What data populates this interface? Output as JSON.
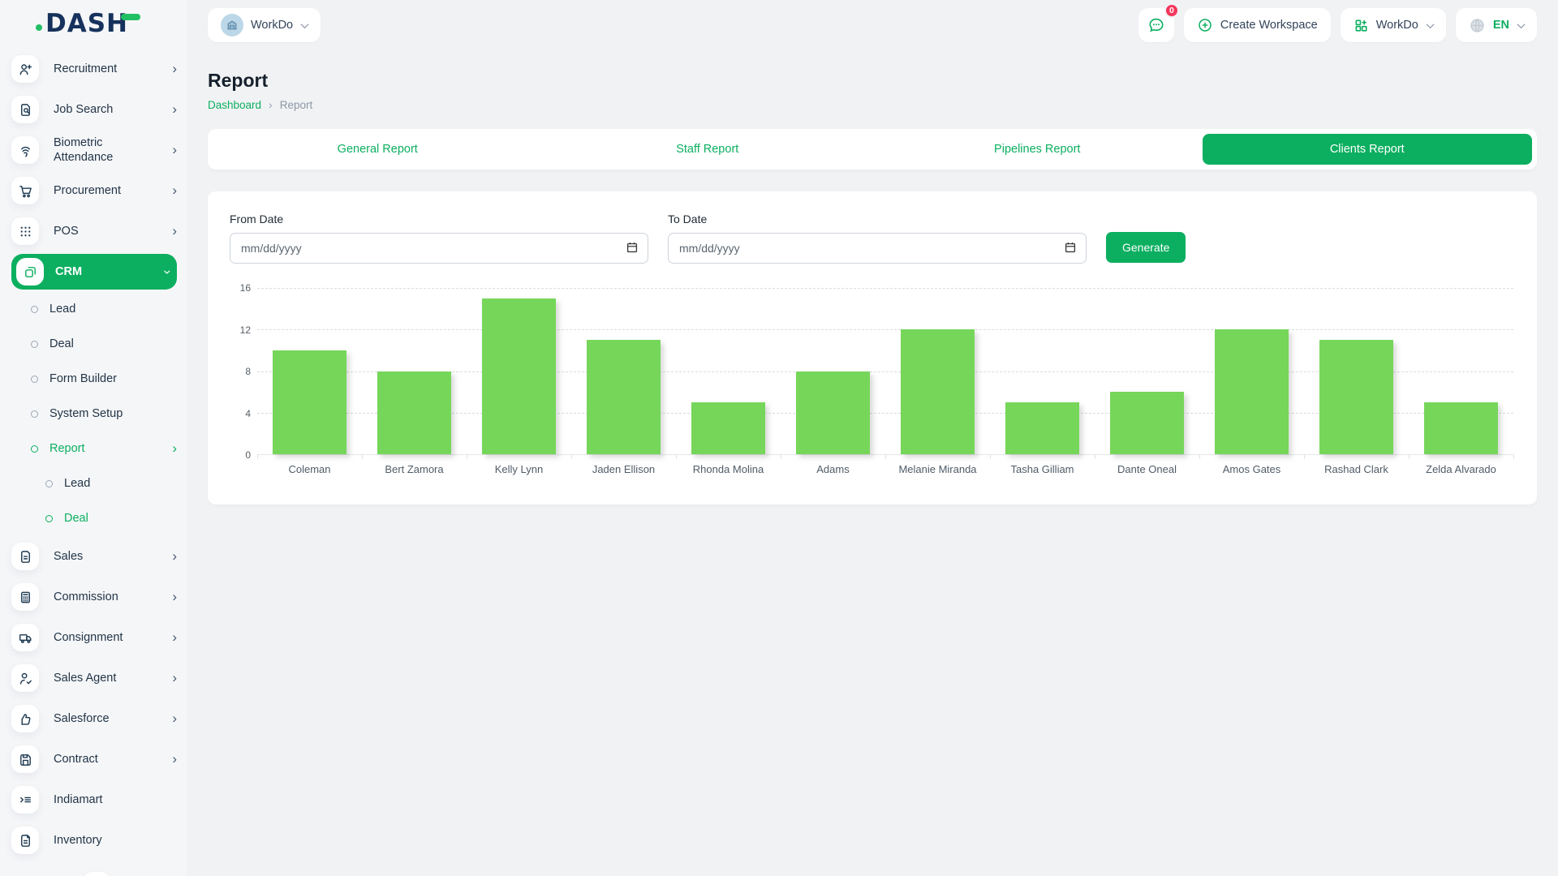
{
  "brand": {
    "logo_text": "DASH",
    "accent_color": "#0caf60"
  },
  "header": {
    "workspace_label": "WorkDo",
    "messages_badge": "0",
    "create_workspace_label": "Create Workspace",
    "apps_label": "WorkDo",
    "language": "EN"
  },
  "sidebar": {
    "items": [
      {
        "label": "Recruitment",
        "icon": "recruitment",
        "level": 0,
        "chevron": "right"
      },
      {
        "label": "Job Search",
        "icon": "job-search",
        "level": 0,
        "chevron": "right"
      },
      {
        "label": "Biometric Attendance",
        "icon": "biometric",
        "level": 0,
        "chevron": "right"
      },
      {
        "label": "Procurement",
        "icon": "procurement",
        "level": 0,
        "chevron": "right"
      },
      {
        "label": "POS",
        "icon": "pos",
        "level": 0,
        "chevron": "right"
      },
      {
        "label": "CRM",
        "icon": "crm",
        "level": 0,
        "chevron": "down",
        "active": true
      },
      {
        "label": "Lead",
        "level": 1
      },
      {
        "label": "Deal",
        "level": 1
      },
      {
        "label": "Form Builder",
        "level": 1
      },
      {
        "label": "System Setup",
        "level": 1
      },
      {
        "label": "Report",
        "level": 1,
        "chevron": "right",
        "active": true
      },
      {
        "label": "Lead",
        "level": 2
      },
      {
        "label": "Deal",
        "level": 2,
        "active": true
      },
      {
        "label": "Sales",
        "icon": "sales",
        "level": 0,
        "chevron": "right"
      },
      {
        "label": "Commission",
        "icon": "commission",
        "level": 0,
        "chevron": "right"
      },
      {
        "label": "Consignment",
        "icon": "consignment",
        "level": 0,
        "chevron": "right"
      },
      {
        "label": "Sales Agent",
        "icon": "sales-agent",
        "level": 0,
        "chevron": "right"
      },
      {
        "label": "Salesforce",
        "icon": "salesforce",
        "level": 0,
        "chevron": "right"
      },
      {
        "label": "Contract",
        "icon": "contract",
        "level": 0,
        "chevron": "right"
      },
      {
        "label": "Indiamart",
        "icon": "indiamart",
        "level": 0
      },
      {
        "label": "Inventory",
        "icon": "inventory",
        "level": 0
      }
    ]
  },
  "page": {
    "title": "Report",
    "breadcrumb": [
      "Dashboard",
      "Report"
    ]
  },
  "tabs": [
    {
      "label": "General Report",
      "active": false
    },
    {
      "label": "Staff Report",
      "active": false
    },
    {
      "label": "Pipelines Report",
      "active": false
    },
    {
      "label": "Clients Report",
      "active": true
    }
  ],
  "form": {
    "from_label": "From Date",
    "to_label": "To Date",
    "date_placeholder": "mm/dd/yyyy",
    "from_value": "",
    "to_value": "",
    "generate_label": "Generate"
  },
  "chart_data": {
    "type": "bar",
    "title": "",
    "categories": [
      "Coleman",
      "Bert Zamora",
      "Kelly Lynn",
      "Jaden Ellison",
      "Rhonda Molina",
      "Adams",
      "Melanie Miranda",
      "Tasha Gilliam",
      "Dante Oneal",
      "Amos Gates",
      "Rashad Clark",
      "Zelda Alvarado"
    ],
    "values": [
      10,
      8,
      15,
      11,
      5,
      8,
      12,
      5,
      6,
      12,
      11,
      5
    ],
    "xlabel": "",
    "ylabel": "",
    "ylim": [
      0,
      16
    ],
    "yticks": [
      0,
      4,
      8,
      12,
      16
    ],
    "grid": "horizontal-dashed",
    "legend": "none",
    "bar_color": "#76d65a"
  }
}
